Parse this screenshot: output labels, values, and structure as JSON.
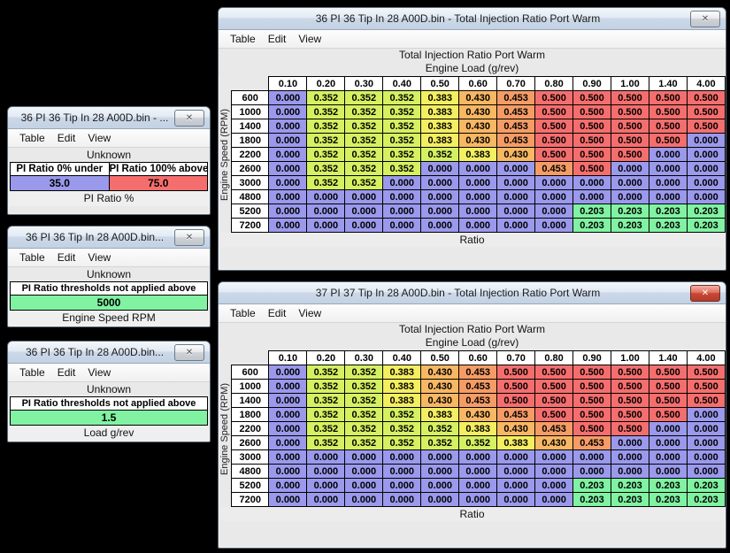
{
  "menu": {
    "table": "Table",
    "edit": "Edit",
    "view": "View"
  },
  "cell_colors": {
    "0.000": "#9a99ec",
    "0.203": "#80f2a2",
    "0.352": "#d5f161",
    "0.383": "#f4ee61",
    "0.430": "#f7b763",
    "0.453": "#f59c66",
    "0.500": "#f56e6e"
  },
  "value_colors": {
    "35.0": "#9a99ec",
    "75.0": "#f56e6e",
    "5000": "#80f2a2",
    "1.5": "#80f2a2"
  },
  "windows": {
    "table36": {
      "title": "36 PI 36 Tip In 28 A00D.bin - Total Injection Ratio Port Warm",
      "close_icon": "inactive",
      "header_line1": "Total Injection Ratio Port Warm",
      "header_line2": "Engine Load (g/rev)",
      "y_axis_label": "Engine Speed (RPM)",
      "x_axis_label": "Ratio",
      "columns": [
        "0.10",
        "0.20",
        "0.30",
        "0.40",
        "0.50",
        "0.60",
        "0.70",
        "0.80",
        "0.90",
        "1.00",
        "1.40",
        "4.00"
      ],
      "rows": [
        "600",
        "1000",
        "1400",
        "1800",
        "2200",
        "2600",
        "3000",
        "4800",
        "5200",
        "7200"
      ],
      "values": [
        [
          "0.000",
          "0.352",
          "0.352",
          "0.352",
          "0.383",
          "0.430",
          "0.453",
          "0.500",
          "0.500",
          "0.500",
          "0.500",
          "0.500"
        ],
        [
          "0.000",
          "0.352",
          "0.352",
          "0.352",
          "0.383",
          "0.430",
          "0.453",
          "0.500",
          "0.500",
          "0.500",
          "0.500",
          "0.500"
        ],
        [
          "0.000",
          "0.352",
          "0.352",
          "0.352",
          "0.383",
          "0.430",
          "0.453",
          "0.500",
          "0.500",
          "0.500",
          "0.500",
          "0.500"
        ],
        [
          "0.000",
          "0.352",
          "0.352",
          "0.352",
          "0.383",
          "0.430",
          "0.453",
          "0.500",
          "0.500",
          "0.500",
          "0.500",
          "0.000"
        ],
        [
          "0.000",
          "0.352",
          "0.352",
          "0.352",
          "0.352",
          "0.383",
          "0.430",
          "0.500",
          "0.500",
          "0.500",
          "0.000",
          "0.000"
        ],
        [
          "0.000",
          "0.352",
          "0.352",
          "0.352",
          "0.000",
          "0.000",
          "0.000",
          "0.453",
          "0.500",
          "0.000",
          "0.000",
          "0.000"
        ],
        [
          "0.000",
          "0.352",
          "0.352",
          "0.000",
          "0.000",
          "0.000",
          "0.000",
          "0.000",
          "0.000",
          "0.000",
          "0.000",
          "0.000"
        ],
        [
          "0.000",
          "0.000",
          "0.000",
          "0.000",
          "0.000",
          "0.000",
          "0.000",
          "0.000",
          "0.000",
          "0.000",
          "0.000",
          "0.000"
        ],
        [
          "0.000",
          "0.000",
          "0.000",
          "0.000",
          "0.000",
          "0.000",
          "0.000",
          "0.000",
          "0.203",
          "0.203",
          "0.203",
          "0.203"
        ],
        [
          "0.000",
          "0.000",
          "0.000",
          "0.000",
          "0.000",
          "0.000",
          "0.000",
          "0.000",
          "0.203",
          "0.203",
          "0.203",
          "0.203"
        ]
      ]
    },
    "table37": {
      "title": "37 PI 37 Tip In 28 A00D.bin - Total Injection Ratio Port Warm",
      "close_icon": "active",
      "header_line1": "Total Injection Ratio Port Warm",
      "header_line2": "Engine Load (g/rev)",
      "y_axis_label": "Engine Speed (RPM)",
      "x_axis_label": "Ratio",
      "columns": [
        "0.10",
        "0.20",
        "0.30",
        "0.40",
        "0.50",
        "0.60",
        "0.70",
        "0.80",
        "0.90",
        "1.00",
        "1.40",
        "4.00"
      ],
      "rows": [
        "600",
        "1000",
        "1400",
        "1800",
        "2200",
        "2600",
        "3000",
        "4800",
        "5200",
        "7200"
      ],
      "values": [
        [
          "0.000",
          "0.352",
          "0.352",
          "0.383",
          "0.430",
          "0.453",
          "0.500",
          "0.500",
          "0.500",
          "0.500",
          "0.500",
          "0.500"
        ],
        [
          "0.000",
          "0.352",
          "0.352",
          "0.383",
          "0.430",
          "0.453",
          "0.500",
          "0.500",
          "0.500",
          "0.500",
          "0.500",
          "0.500"
        ],
        [
          "0.000",
          "0.352",
          "0.352",
          "0.383",
          "0.430",
          "0.453",
          "0.500",
          "0.500",
          "0.500",
          "0.500",
          "0.500",
          "0.500"
        ],
        [
          "0.000",
          "0.352",
          "0.352",
          "0.352",
          "0.383",
          "0.430",
          "0.453",
          "0.500",
          "0.500",
          "0.500",
          "0.500",
          "0.000"
        ],
        [
          "0.000",
          "0.352",
          "0.352",
          "0.352",
          "0.352",
          "0.383",
          "0.430",
          "0.453",
          "0.500",
          "0.500",
          "0.000",
          "0.000"
        ],
        [
          "0.000",
          "0.352",
          "0.352",
          "0.352",
          "0.352",
          "0.352",
          "0.383",
          "0.430",
          "0.453",
          "0.000",
          "0.000",
          "0.000"
        ],
        [
          "0.000",
          "0.000",
          "0.000",
          "0.000",
          "0.000",
          "0.000",
          "0.000",
          "0.000",
          "0.000",
          "0.000",
          "0.000",
          "0.000"
        ],
        [
          "0.000",
          "0.000",
          "0.000",
          "0.000",
          "0.000",
          "0.000",
          "0.000",
          "0.000",
          "0.000",
          "0.000",
          "0.000",
          "0.000"
        ],
        [
          "0.000",
          "0.000",
          "0.000",
          "0.000",
          "0.000",
          "0.000",
          "0.000",
          "0.000",
          "0.203",
          "0.203",
          "0.203",
          "0.203"
        ],
        [
          "0.000",
          "0.000",
          "0.000",
          "0.000",
          "0.000",
          "0.000",
          "0.000",
          "0.000",
          "0.203",
          "0.203",
          "0.203",
          "0.203"
        ]
      ]
    },
    "pi_ratio": {
      "title": "36 PI 36 Tip In 28 A00D.bin - ...",
      "subtitle": "Unknown",
      "col_headers": [
        "PI Ratio 0% under",
        "PI Ratio 100% above"
      ],
      "values": [
        "35.0",
        "75.0"
      ],
      "footer": "PI Ratio %"
    },
    "rpm_threshold": {
      "title": "36 PI 36 Tip In 28 A00D.bin...",
      "subtitle": "Unknown",
      "header": "PI Ratio thresholds not applied above",
      "value": "5000",
      "footer": "Engine Speed RPM"
    },
    "load_threshold": {
      "title": "36 PI 36 Tip In 28 A00D.bin...",
      "subtitle": "Unknown",
      "header": "PI Ratio thresholds not applied above",
      "value": "1.5",
      "footer": "Load g/rev"
    }
  },
  "close_glyph": "✕"
}
